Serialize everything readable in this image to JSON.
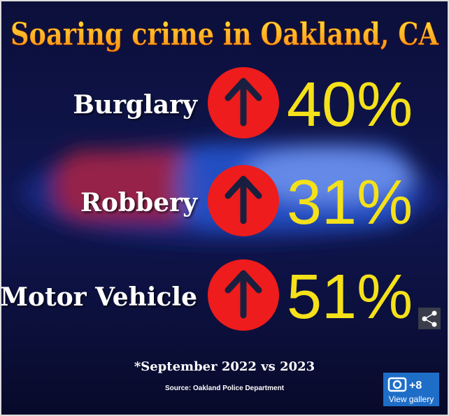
{
  "title": "Soaring crime in Oakland, CA",
  "items": [
    {
      "label": "Burglary",
      "value": "40%"
    },
    {
      "label": "Robbery",
      "value": "31%"
    },
    {
      "label": "Motor Vehicle",
      "value": "51%"
    }
  ],
  "footnote": "*September 2022 vs 2023",
  "source": "Source: Oakland Police Department",
  "gallery": {
    "count": "+8",
    "label": "View gallery"
  }
}
